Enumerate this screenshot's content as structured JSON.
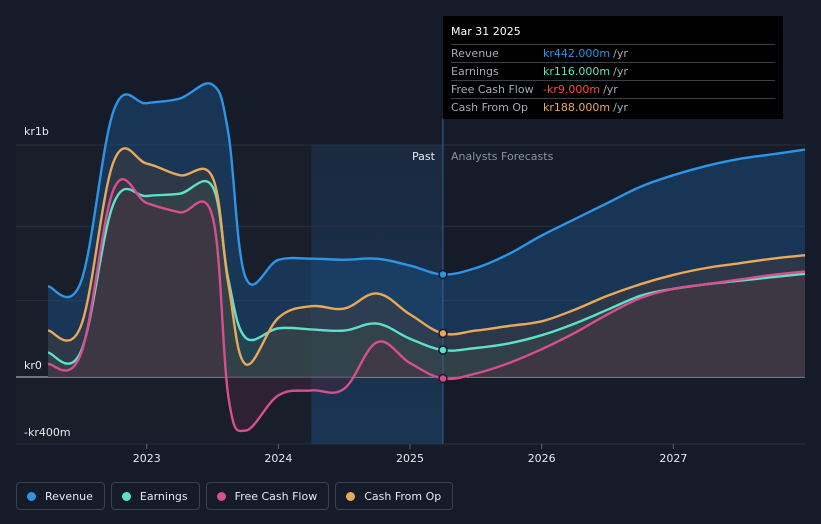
{
  "chart_data": {
    "type": "line",
    "y_label_top": "kr1b",
    "y_label_zero": "kr0",
    "y_label_bottom": "-kr400m",
    "ylim": [
      -400,
      1400
    ],
    "xlim": [
      2022.25,
      2028.0
    ],
    "x_ticks": [
      {
        "value": 2023.0,
        "label": "2023"
      },
      {
        "value": 2024.0,
        "label": "2024"
      },
      {
        "value": 2025.0,
        "label": "2025"
      },
      {
        "value": 2026.0,
        "label": "2026"
      },
      {
        "value": 2027.0,
        "label": "2027"
      }
    ],
    "gridlines": [
      1000,
      500,
      0,
      -400
    ],
    "past_label": "Past",
    "forecast_label": "Analysts Forecasts",
    "divider_x": 2025.25,
    "highlight_start_x": 2024.25,
    "series": [
      {
        "name": "Revenue",
        "color": "#2d94e6",
        "x": [
          2022.25,
          2022.5,
          2022.75,
          2023.0,
          2023.25,
          2023.5,
          2023.62,
          2023.75,
          2024.0,
          2024.25,
          2024.5,
          2024.75,
          2025.0,
          2025.25,
          2025.5,
          2025.75,
          2026.0,
          2026.25,
          2026.5,
          2026.75,
          2027.0,
          2027.25,
          2027.5,
          2027.75,
          2028.0
        ],
        "values": [
          390,
          410,
          1150,
          1180,
          1200,
          1260,
          1050,
          430,
          505,
          510,
          505,
          510,
          480,
          442,
          470,
          530,
          610,
          680,
          750,
          820,
          870,
          910,
          940,
          960,
          980
        ]
      },
      {
        "name": "Earnings",
        "color": "#5fe0c8",
        "x": [
          2022.25,
          2022.5,
          2022.75,
          2023.0,
          2023.25,
          2023.5,
          2023.62,
          2023.75,
          2024.0,
          2024.25,
          2024.5,
          2024.75,
          2025.0,
          2025.25,
          2025.5,
          2025.75,
          2026.0,
          2026.25,
          2026.5,
          2026.75,
          2027.0,
          2027.25,
          2027.5,
          2027.75,
          2028.0
        ],
        "values": [
          105,
          110,
          750,
          780,
          790,
          820,
          420,
          170,
          210,
          205,
          200,
          230,
          165,
          116,
          125,
          145,
          180,
          230,
          290,
          350,
          380,
          400,
          415,
          430,
          445
        ]
      },
      {
        "name": "Free Cash Flow",
        "color": "#d64f8f",
        "x": [
          2022.25,
          2022.5,
          2022.75,
          2023.0,
          2023.25,
          2023.5,
          2023.62,
          2023.75,
          2024.0,
          2024.25,
          2024.5,
          2024.75,
          2025.0,
          2025.25,
          2025.5,
          2025.75,
          2026.0,
          2026.25,
          2026.5,
          2026.75,
          2027.0,
          2027.25,
          2027.5,
          2027.75,
          2028.0
        ],
        "values": [
          55,
          100,
          810,
          750,
          710,
          690,
          -120,
          -320,
          -110,
          -80,
          -70,
          150,
          60,
          -9,
          15,
          60,
          120,
          190,
          270,
          340,
          380,
          400,
          420,
          440,
          455
        ]
      },
      {
        "name": "Cash From Op",
        "color": "#e8a95a",
        "x": [
          2022.25,
          2022.5,
          2022.75,
          2023.0,
          2023.25,
          2023.5,
          2023.62,
          2023.75,
          2024.0,
          2024.25,
          2024.5,
          2024.75,
          2025.0,
          2025.25,
          2025.5,
          2025.75,
          2026.0,
          2026.25,
          2026.5,
          2026.75,
          2027.0,
          2027.25,
          2027.5,
          2027.75,
          2028.0
        ],
        "values": [
          200,
          220,
          930,
          920,
          870,
          860,
          400,
          55,
          255,
          305,
          295,
          360,
          270,
          188,
          200,
          220,
          240,
          290,
          350,
          400,
          440,
          470,
          490,
          510,
          525
        ]
      }
    ]
  },
  "tooltip": {
    "date": "Mar 31 2025",
    "unit": "/yr",
    "rows": [
      {
        "name": "Revenue",
        "value": "kr442.000m",
        "color": "#2d94e6"
      },
      {
        "name": "Earnings",
        "value": "kr116.000m",
        "color": "#5fe0c8"
      },
      {
        "name": "Free Cash Flow",
        "value": "-kr9.000m",
        "color": "#ff4a4a"
      },
      {
        "name": "Cash From Op",
        "value": "kr188.000m",
        "color": "#e8a95a"
      }
    ]
  },
  "legend": [
    {
      "label": "Revenue",
      "color": "#2d94e6"
    },
    {
      "label": "Earnings",
      "color": "#5fe0c8"
    },
    {
      "label": "Free Cash Flow",
      "color": "#d64f8f"
    },
    {
      "label": "Cash From Op",
      "color": "#e8a95a"
    }
  ]
}
